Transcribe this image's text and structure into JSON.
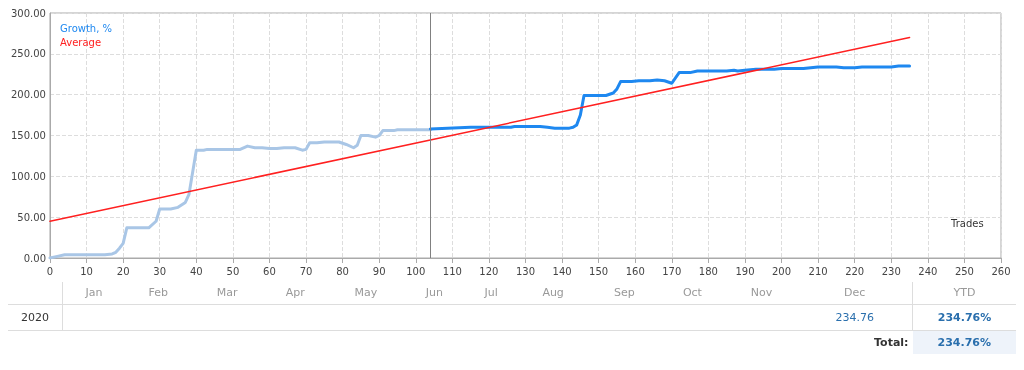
{
  "chart_data": {
    "type": "line",
    "xlabel": "Trades",
    "xlim": [
      0,
      260
    ],
    "xticks": [
      0,
      10,
      20,
      30,
      40,
      50,
      60,
      70,
      80,
      90,
      100,
      110,
      120,
      130,
      140,
      150,
      160,
      170,
      180,
      190,
      200,
      210,
      220,
      230,
      240,
      250,
      260
    ],
    "ylim": [
      0,
      300
    ],
    "yticks": [
      {
        "value": 0,
        "label": "0.00"
      },
      {
        "value": 50,
        "label": "50.00"
      },
      {
        "value": 100,
        "label": "100.00"
      },
      {
        "value": 150,
        "label": "150.00"
      },
      {
        "value": 200,
        "label": "200.00"
      },
      {
        "value": 250,
        "label": "250.00"
      },
      {
        "value": 300,
        "label": "300.00"
      }
    ],
    "grid": true,
    "legend": "top left",
    "marker": "none",
    "line_style": "solid",
    "ref_lines": [
      {
        "axis": "x",
        "value": 104,
        "color": "#808080"
      }
    ],
    "series": [
      {
        "color": "#a9c6e6",
        "x": [
          0,
          2,
          4,
          15,
          17,
          18,
          19,
          20,
          21,
          27,
          29,
          30,
          33,
          35,
          37,
          38,
          39,
          40,
          42,
          43,
          52,
          54,
          56,
          58,
          60,
          62,
          64,
          67,
          69,
          70,
          71,
          73,
          75,
          79,
          81,
          83,
          84,
          85,
          87,
          89,
          90,
          91,
          94,
          95,
          104
        ],
        "values": [
          0,
          2,
          4,
          4,
          5,
          7,
          12,
          18,
          37,
          37,
          45,
          60,
          60,
          62,
          68,
          78,
          105,
          132,
          132,
          133,
          133,
          137,
          135,
          135,
          134,
          134,
          135,
          135,
          132,
          133,
          141,
          141,
          142,
          142,
          139,
          135,
          138,
          150,
          150,
          148,
          150,
          156,
          156,
          157,
          157
        ]
      },
      {
        "name": "Growth, %",
        "color": "#1e88f0",
        "x": [
          104,
          115,
          126,
          127,
          134,
          136,
          138,
          142,
          143,
          144,
          145,
          146,
          152,
          154,
          155,
          156,
          159,
          161,
          164,
          166,
          168,
          170,
          172,
          175,
          177,
          185,
          187,
          188,
          190,
          193,
          198,
          200,
          206,
          208,
          210,
          215,
          217,
          220,
          222,
          230,
          232,
          235
        ],
        "values": [
          158,
          160,
          160,
          161,
          161,
          160,
          159,
          159,
          160,
          163,
          175,
          199,
          199,
          202,
          207,
          216,
          216,
          217,
          217,
          218,
          217,
          214,
          227,
          227,
          229,
          229,
          230,
          229,
          230,
          231,
          231,
          232,
          232,
          233,
          234,
          234,
          233,
          233,
          234,
          234,
          235,
          235
        ]
      },
      {
        "name": "Average",
        "color": "#ff2020",
        "x": [
          0,
          235
        ],
        "values": [
          45,
          270
        ]
      }
    ],
    "annotations": [
      "Jan",
      "Feb",
      "Mar",
      "Apr",
      "May",
      "Jun",
      "Jul",
      "Aug",
      "Sep",
      "Oct",
      "Nov",
      "Dec",
      "YTD",
      "2020",
      "234.76",
      "234.76%",
      "Total:",
      "234.76%"
    ]
  }
}
